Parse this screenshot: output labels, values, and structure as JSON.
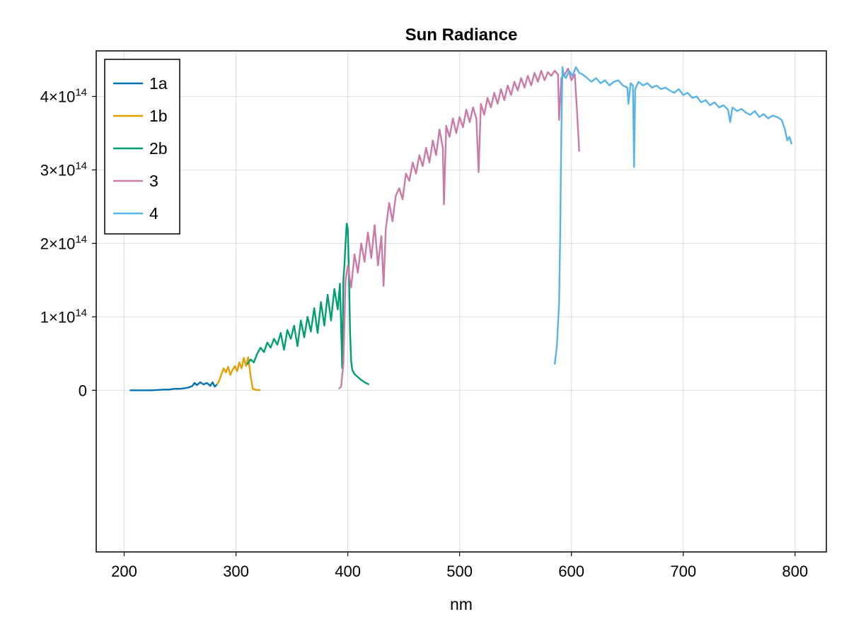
{
  "chart_data": {
    "type": "line",
    "title": "Sun Radiance",
    "xlabel": "nm",
    "ylabel": "",
    "xlim": [
      175,
      828
    ],
    "ylim": [
      -220000000000000.0,
      462000000000000.0
    ],
    "grid": true,
    "legend_placement": "top-left",
    "x_ticks": [
      {
        "value": 200,
        "label": "200"
      },
      {
        "value": 300,
        "label": "300"
      },
      {
        "value": 400,
        "label": "400"
      },
      {
        "value": 500,
        "label": "500"
      },
      {
        "value": 600,
        "label": "600"
      },
      {
        "value": 700,
        "label": "700"
      },
      {
        "value": 800,
        "label": "800"
      }
    ],
    "y_ticks": [
      {
        "value": 0,
        "mantissa": "0",
        "exponent": ""
      },
      {
        "value": 100000000000000.0,
        "mantissa": "1×10",
        "exponent": "14"
      },
      {
        "value": 200000000000000.0,
        "mantissa": "2×10",
        "exponent": "14"
      },
      {
        "value": 300000000000000.0,
        "mantissa": "3×10",
        "exponent": "14"
      },
      {
        "value": 400000000000000.0,
        "mantissa": "4×10",
        "exponent": "14"
      }
    ],
    "series": [
      {
        "name": "1a",
        "color": "#0072b2",
        "x": [
          205,
          215,
          225,
          235,
          240,
          245,
          250,
          255,
          258,
          261,
          263,
          265,
          268,
          271,
          274,
          277,
          279,
          281,
          283
        ],
        "y": [
          0,
          0,
          0,
          1000000000000.0,
          1000000000000.0,
          2000000000000.0,
          2000000000000.0,
          3000000000000.0,
          4000000000000.0,
          6000000000000.0,
          10000000000000.0,
          7000000000000.0,
          11000000000000.0,
          8000000000000.0,
          10000000000000.0,
          6000000000000.0,
          11000000000000.0,
          5000000000000.0,
          8000000000000.0
        ]
      },
      {
        "name": "1b",
        "color": "#e69f00",
        "x": [
          283,
          285,
          287,
          289,
          291,
          293,
          295,
          297,
          299,
          301,
          303,
          305,
          307,
          309,
          311,
          313,
          315,
          317,
          319,
          322
        ],
        "y": [
          8000000000000.0,
          13000000000000.0,
          22000000000000.0,
          30000000000000.0,
          24000000000000.0,
          32000000000000.0,
          21000000000000.0,
          28000000000000.0,
          33000000000000.0,
          26000000000000.0,
          38000000000000.0,
          30000000000000.0,
          44000000000000.0,
          33000000000000.0,
          45000000000000.0,
          20000000000000.0,
          2000000000000.0,
          1000000000000.0,
          500000000000.0,
          300000000000.0
        ]
      },
      {
        "name": "2b",
        "color": "#009e73",
        "x": [
          310,
          313,
          316,
          319,
          322,
          325,
          328,
          331,
          334,
          337,
          340,
          343,
          346,
          349,
          352,
          355,
          358,
          361,
          364,
          367,
          370,
          373,
          376,
          379,
          382,
          385,
          388,
          391,
          393,
          395,
          396,
          397,
          398,
          399,
          400,
          401,
          402,
          403,
          404,
          406,
          409,
          412,
          416,
          419
        ],
        "y": [
          35000000000000.0,
          42000000000000.0,
          38000000000000.0,
          50000000000000.0,
          58000000000000.0,
          52000000000000.0,
          65000000000000.0,
          58000000000000.0,
          70000000000000.0,
          62000000000000.0,
          78000000000000.0,
          55000000000000.0,
          82000000000000.0,
          70000000000000.0,
          88000000000000.0,
          60000000000000.0,
          95000000000000.0,
          72000000000000.0,
          100000000000000.0,
          80000000000000.0,
          112000000000000.0,
          78000000000000.0,
          120000000000000.0,
          88000000000000.0,
          130000000000000.0,
          95000000000000.0,
          138000000000000.0,
          110000000000000.0,
          145000000000000.0,
          30000000000000.0,
          150000000000000.0,
          170000000000000.0,
          200000000000000.0,
          227000000000000.0,
          220000000000000.0,
          160000000000000.0,
          80000000000000.0,
          40000000000000.0,
          28000000000000.0,
          22000000000000.0,
          18000000000000.0,
          14000000000000.0,
          10000000000000.0,
          8000000000000.0
        ]
      },
      {
        "name": "3",
        "color": "#cc79a7",
        "x": [
          392,
          394,
          396,
          398,
          400,
          403,
          406,
          409,
          412,
          415,
          418,
          421,
          424,
          427,
          430,
          432,
          434,
          437,
          440,
          443,
          446,
          449,
          452,
          455,
          458,
          461,
          464,
          467,
          470,
          473,
          476,
          479,
          482,
          485,
          486,
          488,
          491,
          494,
          497,
          500,
          503,
          506,
          509,
          512,
          515,
          517,
          519,
          522,
          525,
          528,
          531,
          534,
          537,
          540,
          543,
          546,
          549,
          552,
          555,
          558,
          561,
          564,
          567,
          570,
          573,
          576,
          579,
          582,
          585,
          588,
          589,
          591,
          594,
          597,
          600,
          603,
          605,
          607
        ],
        "y": [
          2000000000000.0,
          5000000000000.0,
          35000000000000.0,
          150000000000000.0,
          170000000000000.0,
          140000000000000.0,
          185000000000000.0,
          160000000000000.0,
          200000000000000.0,
          175000000000000.0,
          215000000000000.0,
          180000000000000.0,
          225000000000000.0,
          170000000000000.0,
          210000000000000.0,
          142000000000000.0,
          220000000000000.0,
          255000000000000.0,
          230000000000000.0,
          265000000000000.0,
          275000000000000.0,
          260000000000000.0,
          295000000000000.0,
          285000000000000.0,
          310000000000000.0,
          295000000000000.0,
          320000000000000.0,
          305000000000000.0,
          330000000000000.0,
          310000000000000.0,
          340000000000000.0,
          320000000000000.0,
          355000000000000.0,
          330000000000000.0,
          253000000000000.0,
          360000000000000.0,
          345000000000000.0,
          370000000000000.0,
          350000000000000.0,
          372000000000000.0,
          358000000000000.0,
          382000000000000.0,
          365000000000000.0,
          385000000000000.0,
          370000000000000.0,
          297000000000000.0,
          390000000000000.0,
          375000000000000.0,
          398000000000000.0,
          385000000000000.0,
          405000000000000.0,
          390000000000000.0,
          410000000000000.0,
          395000000000000.0,
          415000000000000.0,
          402000000000000.0,
          420000000000000.0,
          408000000000000.0,
          425000000000000.0,
          412000000000000.0,
          428000000000000.0,
          415000000000000.0,
          432000000000000.0,
          420000000000000.0,
          435000000000000.0,
          422000000000000.0,
          433000000000000.0,
          428000000000000.0,
          435000000000000.0,
          430000000000000.0,
          368000000000000.0,
          425000000000000.0,
          430000000000000.0,
          438000000000000.0,
          422000000000000.0,
          430000000000000.0,
          380000000000000.0,
          325000000000000.0
        ]
      },
      {
        "name": "4",
        "color": "#56b4e9",
        "x": [
          585,
          587,
          589,
          590,
          591,
          592,
          593,
          595,
          598,
          601,
          604,
          607,
          610,
          614,
          618,
          622,
          626,
          630,
          634,
          638,
          642,
          646,
          650,
          651,
          653,
          655,
          656,
          657,
          660,
          664,
          668,
          672,
          676,
          680,
          684,
          688,
          692,
          696,
          700,
          704,
          708,
          712,
          716,
          720,
          724,
          728,
          732,
          736,
          740,
          742,
          744,
          748,
          752,
          756,
          760,
          764,
          768,
          772,
          776,
          780,
          784,
          788,
          791,
          793,
          795,
          797
        ],
        "y": [
          35000000000000.0,
          60000000000000.0,
          120000000000000.0,
          220000000000000.0,
          350000000000000.0,
          440000000000000.0,
          430000000000000.0,
          425000000000000.0,
          435000000000000.0,
          428000000000000.0,
          440000000000000.0,
          432000000000000.0,
          430000000000000.0,
          425000000000000.0,
          420000000000000.0,
          425000000000000.0,
          418000000000000.0,
          422000000000000.0,
          415000000000000.0,
          420000000000000.0,
          422000000000000.0,
          415000000000000.0,
          412000000000000.0,
          390000000000000.0,
          418000000000000.0,
          415000000000000.0,
          304000000000000.0,
          410000000000000.0,
          420000000000000.0,
          415000000000000.0,
          418000000000000.0,
          412000000000000.0,
          415000000000000.0,
          410000000000000.0,
          412000000000000.0,
          408000000000000.0,
          405000000000000.0,
          410000000000000.0,
          402000000000000.0,
          405000000000000.0,
          398000000000000.0,
          400000000000000.0,
          392000000000000.0,
          395000000000000.0,
          388000000000000.0,
          392000000000000.0,
          385000000000000.0,
          388000000000000.0,
          382000000000000.0,
          365000000000000.0,
          385000000000000.0,
          380000000000000.0,
          383000000000000.0,
          378000000000000.0,
          375000000000000.0,
          380000000000000.0,
          372000000000000.0,
          376000000000000.0,
          370000000000000.0,
          374000000000000.0,
          372000000000000.0,
          368000000000000.0,
          355000000000000.0,
          340000000000000.0,
          345000000000000.0,
          335000000000000.0
        ]
      }
    ]
  }
}
